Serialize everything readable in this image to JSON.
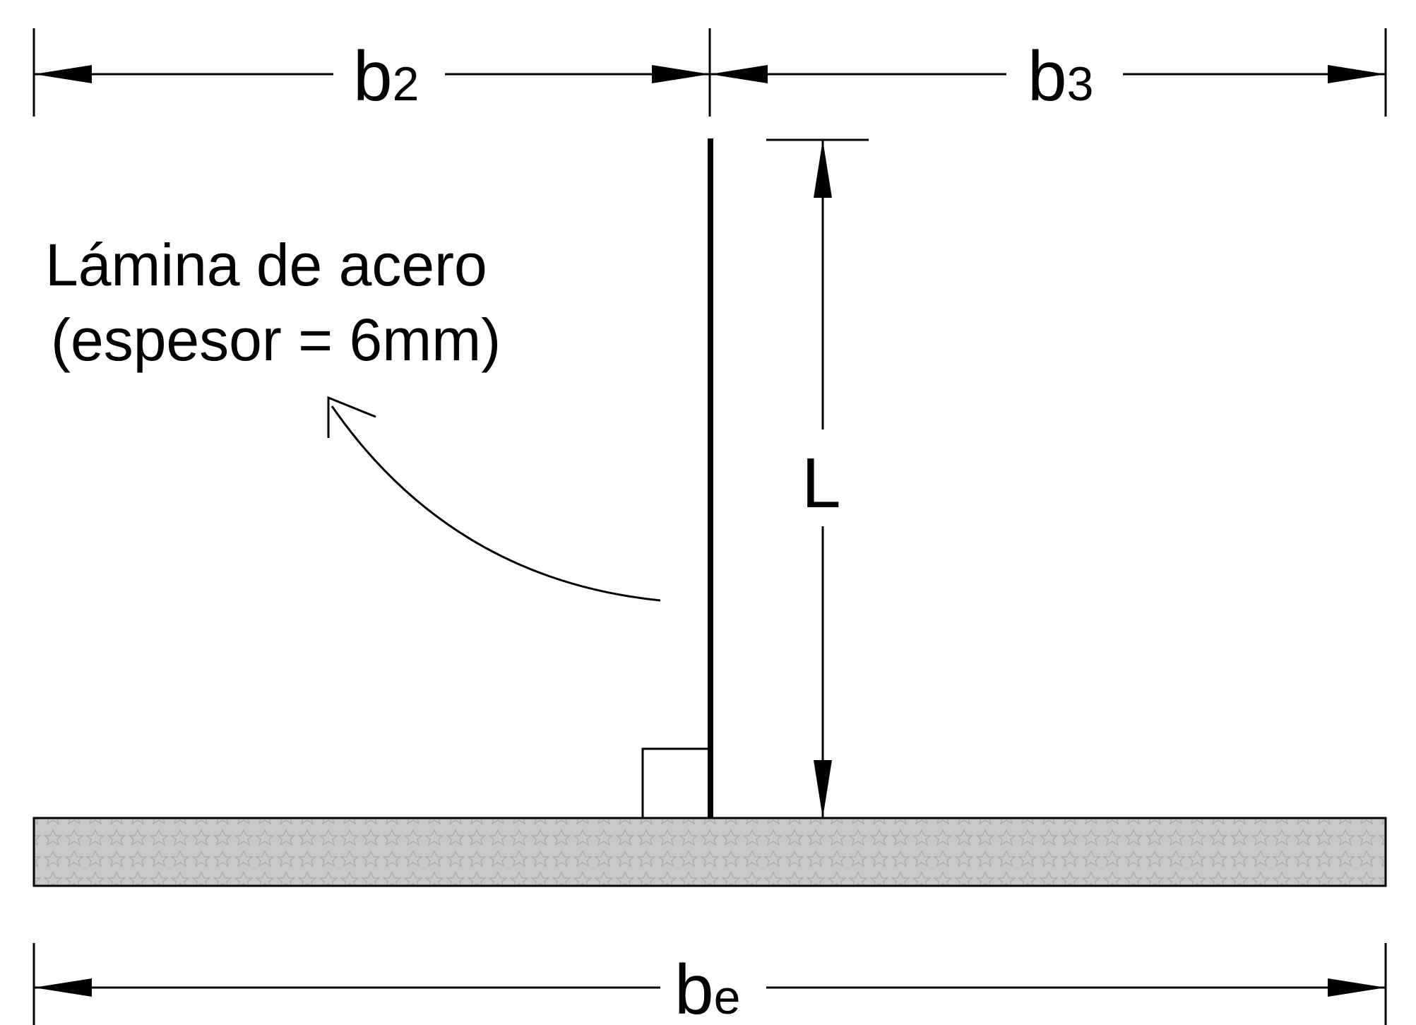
{
  "dimensions": {
    "b2": {
      "main": "b",
      "sub": "2"
    },
    "b3": {
      "main": "b",
      "sub": "3"
    },
    "be": {
      "main": "b",
      "sub": "e"
    },
    "L": "L"
  },
  "plate_label": {
    "line1": "Lámina de acero",
    "line2": "(espesor = 6mm)"
  },
  "colors": {
    "stroke": "#000000",
    "slab_fill": "#c8c8c8",
    "slab_pattern": "#a8a8a8"
  }
}
